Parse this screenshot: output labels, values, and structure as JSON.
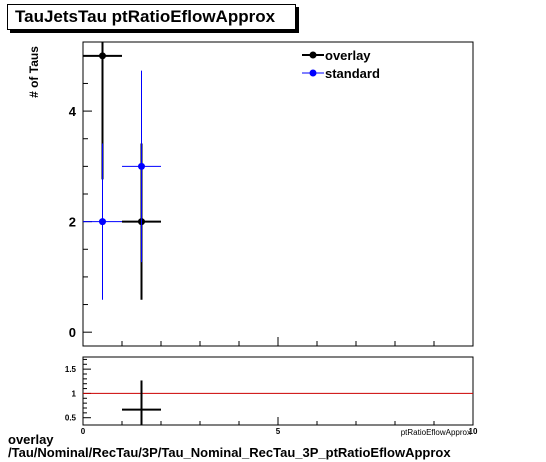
{
  "chart_data": [
    {
      "type": "scatter",
      "title": "TauJetsTau ptRatioEflowApprox",
      "ylabel": "# of Taus",
      "xlim": [
        0,
        10
      ],
      "ylim": [
        -0.25,
        5.25
      ],
      "y_ticks": [
        "0",
        "2",
        "4"
      ],
      "x_ticks": [],
      "legend": {
        "placement": "top-right"
      },
      "series": [
        {
          "name": "overlay",
          "color": "#000000",
          "points": [
            {
              "x": 0.5,
              "xerr": 0.5,
              "y": 5,
              "yerr": 2.236
            },
            {
              "x": 1.5,
              "xerr": 0.5,
              "y": 2,
              "yerr": 1.414
            }
          ]
        },
        {
          "name": "standard",
          "color": "#0000ff",
          "points": [
            {
              "x": 0.5,
              "xerr": 0.5,
              "y": 2,
              "yerr": 1.414
            },
            {
              "x": 1.5,
              "xerr": 0.5,
              "y": 3,
              "yerr": 1.732
            }
          ]
        }
      ]
    },
    {
      "type": "scatter",
      "xlabel": "ptRatioEflowApprox",
      "xlim": [
        0,
        10
      ],
      "ylim": [
        0.35,
        1.75
      ],
      "y_ticks": [
        "0.5",
        "1",
        "1.5"
      ],
      "x_ticks": [
        "0",
        "5",
        "10"
      ],
      "reference_line": {
        "y": 1,
        "color": "#cc0000"
      },
      "series": [
        {
          "color": "#000000",
          "points": [
            {
              "x": 1.5,
              "xerr": 0.5,
              "y": 0.667,
              "yerr": 0.6
            }
          ]
        }
      ]
    }
  ],
  "footer": {
    "line1": "overlay",
    "line2": "/Tau/Nominal/RecTau/3P/Tau_Nominal_RecTau_3P_ptRatioEflowApprox"
  }
}
